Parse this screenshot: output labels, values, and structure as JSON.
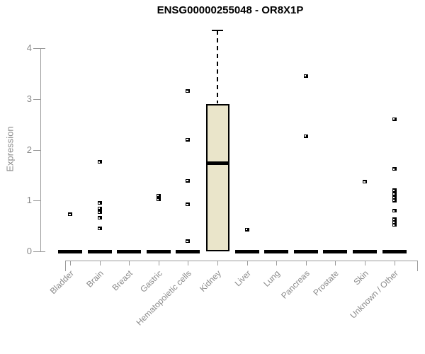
{
  "chart_data": {
    "type": "boxplot",
    "title": "ENSG00000255048 - OR8X1P",
    "ylabel": "Expression",
    "xlabel": "",
    "ylim": [
      0,
      4.4
    ],
    "yticks": [
      0,
      1,
      2,
      3,
      4
    ],
    "grid": false,
    "legend": null,
    "categories": [
      "Bladder",
      "Brain",
      "Breast",
      "Gastric",
      "Hematopoietic cells",
      "Kidney",
      "Liver",
      "Lung",
      "Pancreas",
      "Prostate",
      "Skin",
      "Unknown / Other"
    ],
    "series": [
      {
        "category": "Bladder",
        "q1": 0,
        "median": 0,
        "q3": 0,
        "outliers": [
          0.73
        ]
      },
      {
        "category": "Brain",
        "q1": 0,
        "median": 0,
        "q3": 0,
        "outliers": [
          1.76,
          0.95,
          0.85,
          0.77,
          0.66,
          0.45
        ]
      },
      {
        "category": "Breast",
        "q1": 0,
        "median": 0,
        "q3": 0,
        "outliers": []
      },
      {
        "category": "Gastric",
        "q1": 0,
        "median": 0,
        "q3": 0,
        "outliers": [
          1.1,
          1.02
        ]
      },
      {
        "category": "Hematopoietic cells",
        "q1": 0,
        "median": 0,
        "q3": 0,
        "outliers": [
          3.15,
          2.2,
          1.39,
          0.92,
          0.2
        ]
      },
      {
        "category": "Kidney",
        "q1": 0.02,
        "median": 1.74,
        "q3": 2.88,
        "whisker_high": 4.35,
        "whisker_low": 0.02,
        "outliers": []
      },
      {
        "category": "Liver",
        "q1": 0,
        "median": 0,
        "q3": 0,
        "outliers": [
          0.43
        ]
      },
      {
        "category": "Lung",
        "q1": 0,
        "median": 0,
        "q3": 0,
        "outliers": []
      },
      {
        "category": "Pancreas",
        "q1": 0,
        "median": 0,
        "q3": 0,
        "outliers": [
          3.45,
          2.27
        ]
      },
      {
        "category": "Prostate",
        "q1": 0,
        "median": 0,
        "q3": 0,
        "outliers": []
      },
      {
        "category": "Skin",
        "q1": 0,
        "median": 0,
        "q3": 0,
        "outliers": [
          1.37
        ]
      },
      {
        "category": "Unknown / Other",
        "q1": 0,
        "median": 0,
        "q3": 0,
        "outliers": [
          2.6,
          1.62,
          1.2,
          1.13,
          1.06,
          1.0,
          0.8,
          0.63,
          0.57,
          0.52
        ]
      }
    ],
    "colors": {
      "box_fill": "#EAE5CA",
      "box_border": "#000000",
      "marker": "#000000",
      "axis": "#9A9A9A",
      "tick_text": "#8A8A8A",
      "title_text": "#000000"
    }
  }
}
